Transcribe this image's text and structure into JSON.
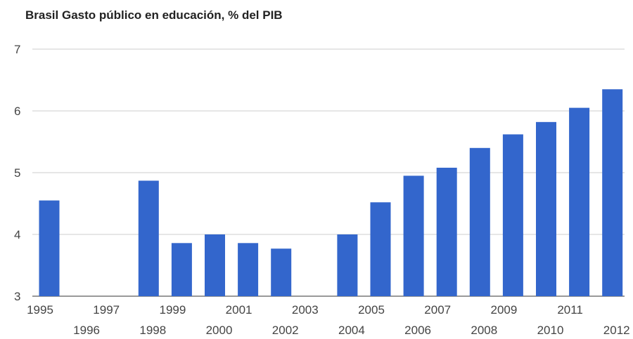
{
  "chart_data": {
    "type": "bar",
    "title": "Brasil Gasto público en educación, % del PIB",
    "xlabel": "",
    "ylabel": "",
    "categories": [
      "1995",
      "1996",
      "1997",
      "1998",
      "1999",
      "2000",
      "2001",
      "2002",
      "2003",
      "2004",
      "2005",
      "2006",
      "2007",
      "2008",
      "2009",
      "2010",
      "2011",
      "2012"
    ],
    "values": [
      4.55,
      null,
      null,
      4.87,
      3.86,
      4.0,
      3.86,
      3.77,
      null,
      4.0,
      4.52,
      4.95,
      5.08,
      5.4,
      5.62,
      5.82,
      6.05,
      6.35
    ],
    "ylim": [
      3,
      7
    ],
    "yticks": [
      "3",
      "4",
      "5",
      "6",
      "7"
    ],
    "grid": true,
    "legend": "none",
    "bar_color": "#3366cc",
    "grid_color": "#cccccc"
  }
}
